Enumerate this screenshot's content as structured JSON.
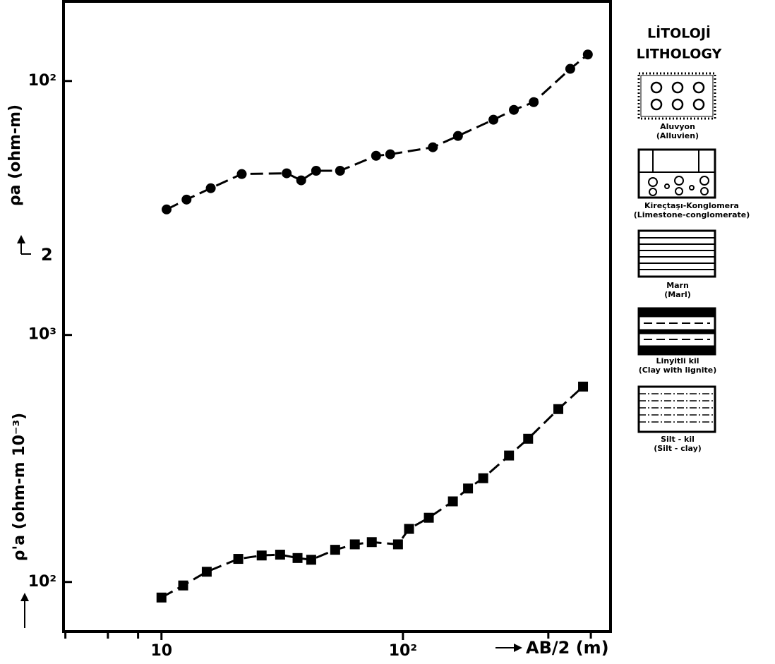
{
  "chart_data": [
    {
      "type": "line",
      "marker": "circle",
      "color": "#000000",
      "log_x": true,
      "log_y": true,
      "ylabel": "ρa (ohm-m)",
      "axis_note": "2",
      "x": [
        10.5,
        12.7,
        16.0,
        21.5,
        33.0,
        37.9,
        43.7,
        54.9,
        77.4,
        88.6,
        133,
        169,
        237,
        288,
        348,
        493,
        583
      ],
      "values": [
        30.2,
        33.1,
        36.8,
        42.0,
        42.3,
        39.6,
        43.3,
        43.3,
        49.8,
        50.5,
        53.9,
        59.9,
        69.7,
        76.4,
        82.1,
        112,
        128
      ],
      "xlim": [
        3.93,
        724
      ],
      "ylim": [
        0.59,
        210
      ],
      "yticks": [
        {
          "value": 100,
          "label": "10²"
        }
      ]
    },
    {
      "type": "line",
      "marker": "square",
      "color": "#000000",
      "log_x": true,
      "log_y": true,
      "ylabel": "ρ'a (ohm-m 10⁻³)",
      "xlabel": "AB/2 (m)",
      "x": [
        10.0,
        12.3,
        15.4,
        20.8,
        26.0,
        31.0,
        36.6,
        41.7,
        52.4,
        63.2,
        74.3,
        95.4,
        106,
        128,
        161,
        186,
        215,
        275,
        330,
        440,
        557
      ],
      "values": [
        86.5,
        96.8,
        110,
        124,
        128,
        129,
        125,
        123,
        135,
        142,
        145,
        142,
        164,
        182,
        212,
        239,
        263,
        325,
        380,
        501,
        618
      ],
      "xlim": [
        3.93,
        724
      ],
      "ylim": [
        63,
        22400
      ],
      "yticks": [
        {
          "value": 1000,
          "label": "10³"
        },
        {
          "value": 100,
          "label": "10²"
        }
      ],
      "xticks": [
        10,
        {
          "value": 100,
          "label": "10²"
        }
      ],
      "xminorticks": [
        4,
        6,
        8,
        400,
        600
      ]
    }
  ],
  "lithology": {
    "title_tr": "LİTOLOJİ",
    "title_en": "LITHOLOGY",
    "items": [
      {
        "tr": "Aluvyon",
        "en": "(Alluvien)"
      },
      {
        "tr": "Kireçtaşı-Konglomera",
        "en": "(Limestone-conglomerate)"
      },
      {
        "tr": "Marn",
        "en": "(Marl)"
      },
      {
        "tr": "Linyitli kil",
        "en": "(Clay with lignite)"
      },
      {
        "tr": "Silt - kil",
        "en": "(Silt - clay)"
      }
    ]
  }
}
